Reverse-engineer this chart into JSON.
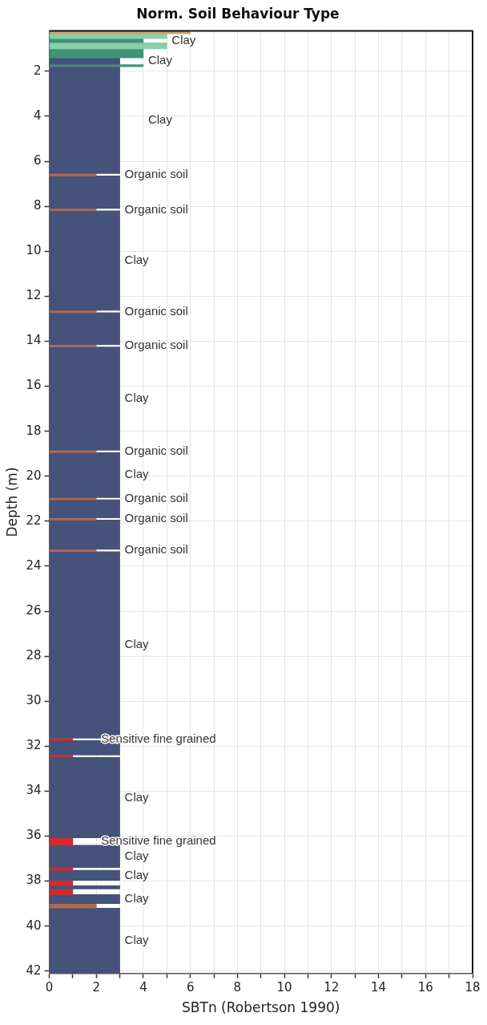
{
  "chart_data": {
    "type": "bar",
    "orientation": "horizontal",
    "title": "Norm. Soil Behaviour Type",
    "xlabel": "SBTn (Robertson 1990)",
    "ylabel": "Depth (m)",
    "x": [
      0.265,
      0.44,
      0.64,
      0.865,
      1.2,
      1.55,
      1.75,
      4.175,
      6.6,
      7.375,
      8.15,
      10.415,
      12.68,
      13.44,
      14.2,
      16.55,
      18.9,
      19.95,
      21.0,
      21.45,
      21.9,
      22.6,
      23.3,
      27.5,
      31.7,
      32.075,
      32.45,
      34.29,
      36.24,
      36.9,
      37.46,
      37.745,
      38.085,
      38.275,
      38.475,
      38.8,
      39.1,
      40.65
    ],
    "values": [
      6,
      5,
      4,
      5,
      4,
      3,
      4,
      3,
      2,
      3,
      2,
      3,
      2,
      3,
      2,
      3,
      2,
      3,
      2,
      3,
      2,
      3,
      2,
      3,
      1,
      3,
      1,
      3,
      1,
      3,
      1,
      3,
      1,
      3,
      1,
      3,
      2,
      3
    ],
    "colors": [
      "#c9a46a",
      "#8ccfab",
      "#3f9478",
      "#8ccfab",
      "#3f9478",
      "#45527a",
      "#3f9478",
      "#45527a",
      "#b0694f",
      "#45527a",
      "#b0694f",
      "#45527a",
      "#b0694f",
      "#45527a",
      "#b0694f",
      "#45527a",
      "#b0694f",
      "#45527a",
      "#b0694f",
      "#45527a",
      "#b0694f",
      "#45527a",
      "#b0694f",
      "#45527a",
      "#d42a2a",
      "#45527a",
      "#d42a2a",
      "#45527a",
      "#d42a2a",
      "#45527a",
      "#d42a2a",
      "#45527a",
      "#d42a2a",
      "#45527a",
      "#d42a2a",
      "#45527a",
      "#b0694f",
      "#45527a"
    ],
    "value_labels": [
      null,
      null,
      "Clay",
      null,
      null,
      "Clay",
      null,
      "Clay",
      "Organic soil",
      null,
      "Organic soil",
      "Clay",
      "Organic soil",
      null,
      "Organic soil",
      "Clay",
      "Organic soil",
      "Clay",
      "Organic soil",
      null,
      "Organic soil",
      null,
      "Organic soil",
      "Clay",
      "Sensitive fine grained",
      null,
      null,
      "Clay",
      "Sensitive fine grained",
      "Clay",
      null,
      "Clay",
      null,
      null,
      null,
      "Clay",
      null,
      "Clay"
    ],
    "xlim": [
      0,
      18
    ],
    "xticks": [
      0,
      {
        "value": 1,
        "label": null
      },
      2,
      {
        "value": 3,
        "label": null
      },
      4,
      {
        "value": 5,
        "label": null
      },
      6,
      {
        "value": 7,
        "label": null
      },
      8,
      {
        "value": 9,
        "label": null
      },
      10,
      {
        "value": 11,
        "label": null
      },
      12,
      {
        "value": 13,
        "label": null
      },
      14,
      {
        "value": 15,
        "label": null
      },
      16,
      {
        "value": 17,
        "label": null
      },
      18
    ],
    "ylim": [
      42.1,
      0.2
    ],
    "yticks": [
      2,
      4,
      6,
      8,
      10,
      12,
      14,
      16,
      18,
      20,
      22,
      24,
      26,
      28,
      30,
      32,
      34,
      36,
      38,
      40,
      42
    ],
    "grid": true
  }
}
